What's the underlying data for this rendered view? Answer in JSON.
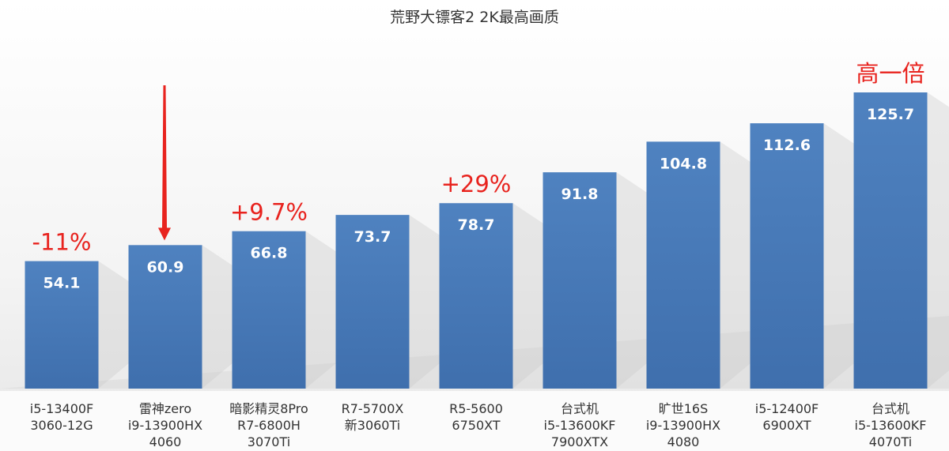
{
  "chart_data": {
    "type": "bar",
    "title": "荒野大镖客2 2K最高画质",
    "xlabel": "",
    "ylabel": "",
    "ylim": [
      0,
      125.7
    ],
    "grid": false,
    "categories": [
      [
        "i5-13400F",
        "3060-12G"
      ],
      [
        "雷神zero",
        "i9-13900HX",
        "4060"
      ],
      [
        "暗影精灵8Pro",
        "R7-6800H",
        "3070Ti"
      ],
      [
        "R7-5700X",
        "新3060Ti"
      ],
      [
        "R5-5600",
        "6750XT"
      ],
      [
        "台式机",
        "i5-13600KF",
        "7900XTX"
      ],
      [
        "旷世16S",
        "i9-13900HX",
        "4080"
      ],
      [
        "i5-12400F",
        "6900XT"
      ],
      [
        "台式机",
        "i5-13600KF",
        "4070Ti"
      ]
    ],
    "values": [
      54.1,
      60.9,
      66.8,
      73.7,
      78.7,
      91.8,
      104.8,
      112.6,
      125.7
    ],
    "data_labels": [
      "54.1",
      "60.9",
      "66.8",
      "73.7",
      "78.7",
      "91.8",
      "104.8",
      "112.6",
      "125.7"
    ],
    "annotations": [
      {
        "bar": 0,
        "text": "-11%"
      },
      {
        "bar": 2,
        "text": "+9.7%"
      },
      {
        "bar": 4,
        "text": "+29%"
      },
      {
        "bar": 8,
        "text": "高一倍"
      }
    ],
    "highlight_arrow_bar": 1,
    "colors": {
      "bar": "#4a7ebb",
      "annotation": "#e8231e",
      "arrow": "#e8231e"
    }
  }
}
